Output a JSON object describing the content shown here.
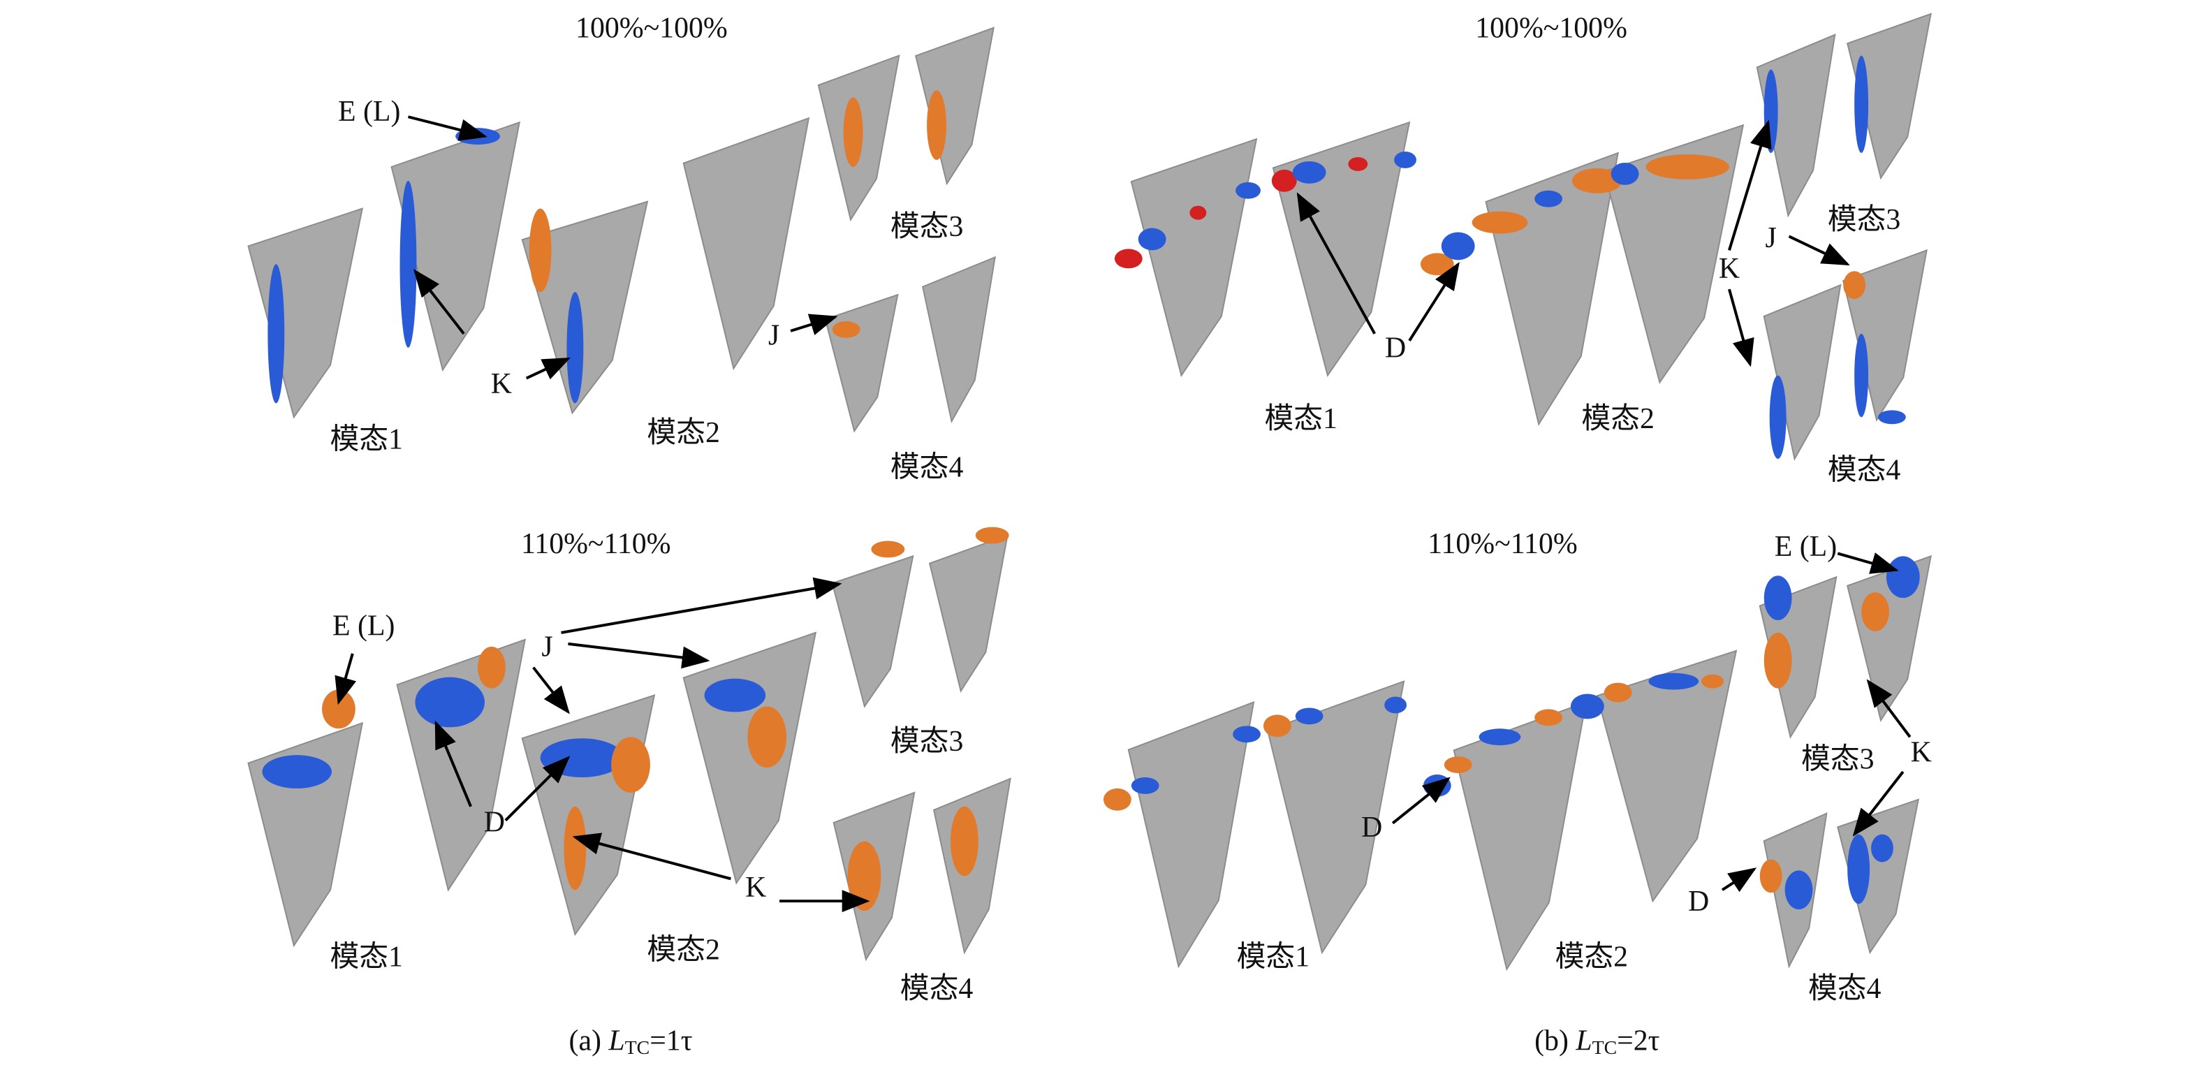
{
  "panels": [
    {
      "caption": {
        "label": "(a)",
        "symbol": "L",
        "subscript": "TC",
        "value": "=1τ"
      },
      "rows": [
        {
          "condition": "100%~100%",
          "modes": [
            "模态1",
            "模态2",
            "模态3",
            "模态4"
          ],
          "labels": [
            "E (L)",
            "K",
            "J"
          ]
        },
        {
          "condition": "110%~110%",
          "modes": [
            "模态1",
            "模态2",
            "模态3",
            "模态4"
          ],
          "labels": [
            "E (L)",
            "J",
            "D",
            "K"
          ]
        }
      ]
    },
    {
      "caption": {
        "label": "(b)",
        "symbol": "L",
        "subscript": "TC",
        "value": "=2τ"
      },
      "rows": [
        {
          "condition": "100%~100%",
          "modes": [
            "模态1",
            "模态2",
            "模态3",
            "模态4"
          ],
          "labels": [
            "D",
            "K",
            "J"
          ]
        },
        {
          "condition": "110%~110%",
          "modes": [
            "模态1",
            "模态2",
            "模态3",
            "模态4"
          ],
          "labels": [
            "E (L)",
            "K",
            "D",
            "D"
          ]
        }
      ]
    }
  ]
}
